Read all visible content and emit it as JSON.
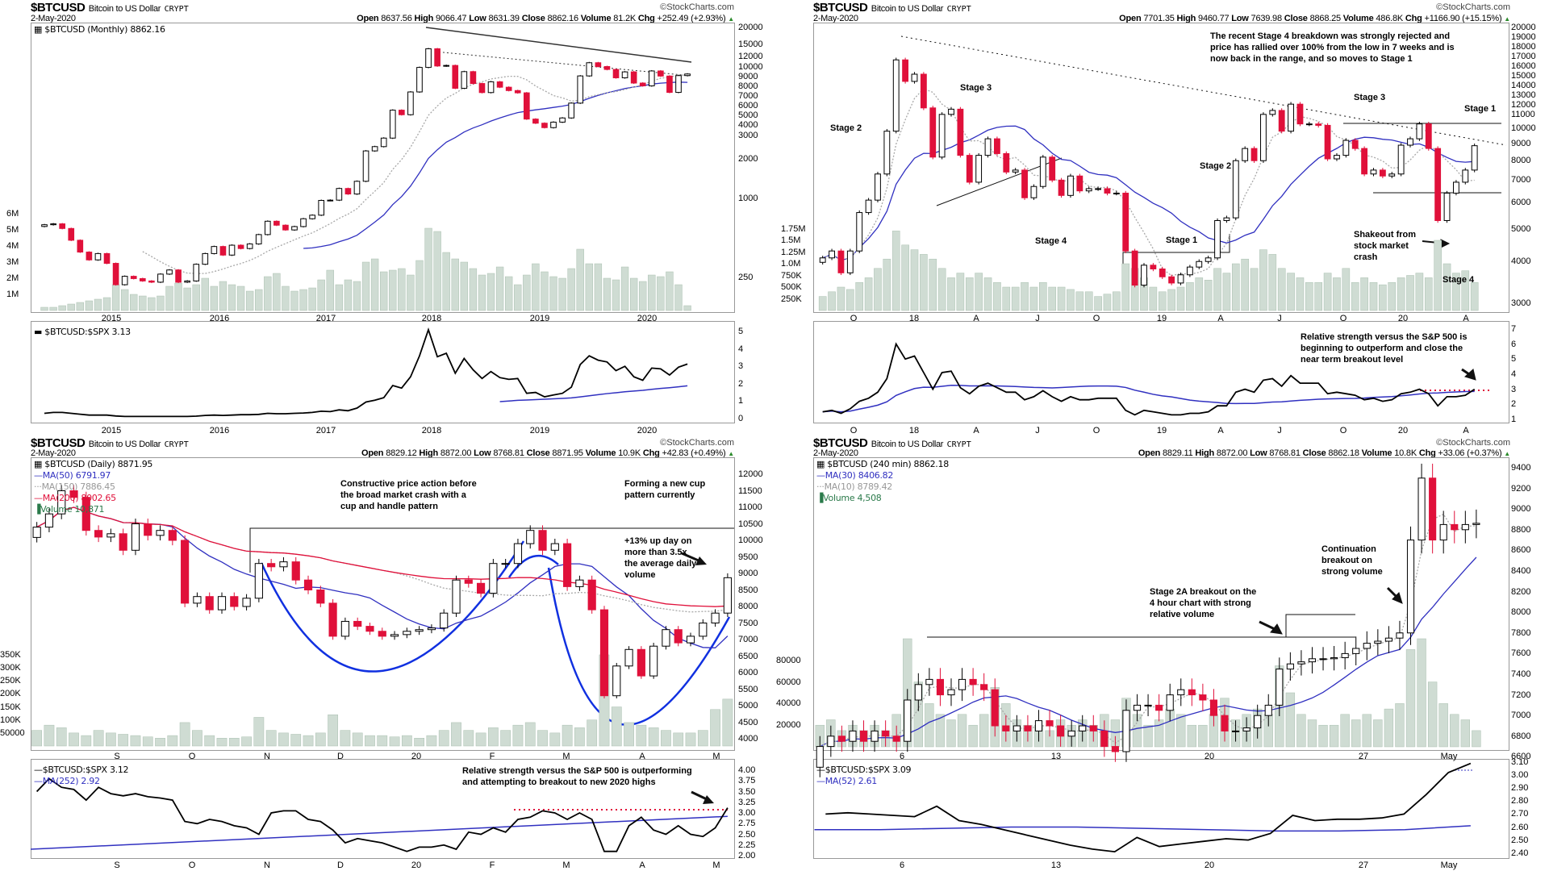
{
  "ohlc_labels": {
    "open": "Open",
    "high": "High",
    "low": "Low",
    "close": "Close",
    "volume": "Volume",
    "chg": "Chg"
  },
  "tl": {
    "header": {
      "symbol": "$BTCUSD",
      "name": "Bitcoin to US Dollar",
      "exchange": "CRYPT",
      "date": "2-May-2020",
      "watermark": "©StockCharts.com",
      "open": "8637.56",
      "high": "9066.47",
      "low": "8631.39",
      "close": "8862.16",
      "volume": "81.2K",
      "chg": "+252.49 (+2.93%)"
    },
    "legend": "$BTCUSD (Monthly) 8862.16",
    "rs_legend": "$BTCUSD:$SPX 3.13",
    "y_ticks": [
      "20000",
      "15000",
      "12000",
      "10000",
      "9000",
      "8000",
      "7000",
      "6000",
      "5000",
      "4000",
      "3000",
      "2000",
      "1000",
      "250"
    ],
    "vol_ticks": [
      "6M",
      "5M",
      "4M",
      "3M",
      "2M",
      "1M"
    ],
    "rs_ticks": [
      "5",
      "4",
      "3",
      "2",
      "1",
      "0"
    ],
    "x_ticks": [
      "2015",
      "2016",
      "2017",
      "2018",
      "2019",
      "2020"
    ]
  },
  "tr": {
    "header": {
      "symbol": "$BTCUSD",
      "name": "Bitcoin to US Dollar",
      "exchange": "CRYPT",
      "date": "2-May-2020",
      "watermark": "©StockCharts.com",
      "open": "7701.35",
      "high": "9460.77",
      "low": "7639.98",
      "close": "8868.25",
      "volume": "486.8K",
      "chg": "+1166.90 (+15.15%)"
    },
    "y_ticks": [
      "20000",
      "19000",
      "18000",
      "17000",
      "16000",
      "15000",
      "14000",
      "13000",
      "12000",
      "11000",
      "10000",
      "9000",
      "8000",
      "7000",
      "6000",
      "5000",
      "4000",
      "3000"
    ],
    "vol_ticks": [
      "1.75M",
      "1.5M",
      "1.25M",
      "1.0M",
      "750K",
      "500K",
      "250K"
    ],
    "rs_ticks": [
      "7",
      "6",
      "5",
      "4",
      "3",
      "2",
      "1"
    ],
    "x_ticks": [
      "O",
      "18",
      "A",
      "J",
      "O",
      "19",
      "A",
      "J",
      "O",
      "20",
      "A"
    ],
    "annotations": {
      "main": "The recent Stage 4 breakdown was strongly rejected and\nprice has rallied over 100% from the low in 7 weeks and is\nnow back in the range, and so moves to Stage 1",
      "stage2a": "Stage 2",
      "stage3a": "Stage 3",
      "stage4a": "Stage 4",
      "stage2b": "Stage 2",
      "stage1a": "Stage 1",
      "stage3b": "Stage 3",
      "stage1b": "Stage 1",
      "shakeout": "Shakeout from\nstock market\ncrash",
      "stage4b": "Stage 4",
      "rs": "Relative strength versus the S&P 500 is\nbeginning to outperform and close the\nnear term breakout level"
    }
  },
  "bl": {
    "header": {
      "symbol": "$BTCUSD",
      "name": "Bitcoin to US Dollar",
      "exchange": "CRYPT",
      "date": "2-May-2020",
      "watermark": "©StockCharts.com",
      "open": "8829.12",
      "high": "8872.00",
      "low": "8768.81",
      "close": "8871.95",
      "volume": "10.9K",
      "chg": "+42.83 (+0.49%)"
    },
    "legend": {
      "main": "$BTCUSD (Daily) 8871.95",
      "ma50": "MA(50) 6791.97",
      "ma150": "MA(150) 7886.45",
      "ma200": "MA(200) 8002.65",
      "volume": "Volume 10,871"
    },
    "rs_legend": {
      "main": "$BTCUSD:$SPX 3.12",
      "ma": "MA(252) 2.92"
    },
    "y_ticks": [
      "12000",
      "11500",
      "11000",
      "10500",
      "10000",
      "9500",
      "9000",
      "8500",
      "8000",
      "7500",
      "7000",
      "6500",
      "6000",
      "5500",
      "5000",
      "4500",
      "4000"
    ],
    "vol_ticks": [
      "350K",
      "300K",
      "250K",
      "200K",
      "150K",
      "100K",
      "50000"
    ],
    "rs_ticks": [
      "4.00",
      "3.75",
      "3.50",
      "3.25",
      "3.00",
      "2.75",
      "2.50",
      "2.25",
      "2.00"
    ],
    "x_ticks": [
      "S",
      "O",
      "N",
      "D",
      "20",
      "F",
      "M",
      "A",
      "M"
    ],
    "annotations": {
      "constructive": "Constructive price action before\nthe broad market crash with a\ncup and handle pattern",
      "forming": "Forming a new cup\npattern currently",
      "upday": "+13% up day on\nmore than 3.5x\nthe average daily\nvolume",
      "rs": "Relative strength versus the S&P 500 is outperforming\nand attempting to breakout to new 2020 highs"
    }
  },
  "br": {
    "header": {
      "symbol": "$BTCUSD",
      "name": "Bitcoin to US Dollar",
      "exchange": "CRYPT",
      "date": "2-May-2020",
      "watermark": "©StockCharts.com",
      "open": "8829.11",
      "high": "8872.00",
      "low": "8768.81",
      "close": "8862.18",
      "volume": "10.8K",
      "chg": "+33.06 (+0.37%)"
    },
    "legend": {
      "main": "$BTCUSD (240 min) 8862.18",
      "ma30": "MA(30) 8406.82",
      "ma10": "MA(10) 8789.42",
      "volume": "Volume 4,508"
    },
    "rs_legend": {
      "main": "$BTCUSD:$SPX 3.09",
      "ma": "MA(52) 2.61"
    },
    "y_ticks": [
      "9400",
      "9200",
      "9000",
      "8800",
      "8600",
      "8400",
      "8200",
      "8000",
      "7800",
      "7600",
      "7400",
      "7200",
      "7000",
      "6800",
      "6600"
    ],
    "vol_ticks": [
      "80000",
      "60000",
      "40000",
      "20000"
    ],
    "rs_ticks": [
      "3.10",
      "3.00",
      "2.90",
      "2.80",
      "2.70",
      "2.60",
      "2.50",
      "2.40"
    ],
    "x_ticks": [
      "6",
      "13",
      "20",
      "27",
      "May"
    ],
    "annotations": {
      "continuation": "Continuation\nbreakout on\nstrong volume",
      "stage2a": "Stage 2A breakout on the\n4 hour chart with strong\nrelative volume"
    }
  },
  "colors": {
    "up_fill": "#ffffff",
    "down": "#e0103a",
    "volume": "#cfdcd3",
    "ma_blue": "#3030c0",
    "ma_grey": "#a8a8a8",
    "ma_red": "#e0103a",
    "rs": "#000000",
    "breakout_dotted": "#e0103a"
  },
  "chart_data": [
    {
      "type": "candlestick",
      "id": "tl",
      "period": "monthly",
      "y_scale": "log",
      "ylim": [
        250,
        20000
      ],
      "close": [
        630,
        640,
        590,
        480,
        390,
        340,
        380,
        320,
        220,
        255,
        245,
        235,
        230,
        265,
        285,
        230,
        235,
        315,
        380,
        430,
        370,
        440,
        415,
        450,
        530,
        670,
        625,
        575,
        610,
        700,
        745,
        965,
        970,
        1190,
        1080,
        1350,
        2300,
        2480,
        2880,
        4700,
        4340,
        6470,
        9950,
        13800,
        10200,
        10300,
        6900,
        9240,
        7500,
        6400,
        7730,
        7030,
        6630,
        6370,
        4020,
        3740,
        3460,
        3810,
        4100,
        5320,
        8570,
        10800,
        10100,
        9600,
        8290,
        9200,
        7560,
        7200,
        9350,
        8550,
        6420,
        8620,
        8862
      ],
      "volume_m": [
        0.2,
        0.2,
        0.3,
        0.4,
        0.5,
        0.6,
        0.7,
        0.8,
        1.6,
        1.3,
        1.0,
        0.9,
        0.8,
        0.9,
        1.5,
        1.7,
        1.4,
        1.6,
        2.0,
        1.5,
        1.8,
        1.6,
        1.5,
        1.2,
        1.3,
        2.1,
        2.3,
        1.5,
        1.2,
        1.3,
        1.4,
        1.9,
        2.5,
        1.6,
        1.9,
        1.8,
        3.0,
        3.2,
        2.4,
        2.5,
        2.6,
        2.2,
        3.1,
        5.1,
        4.9,
        3.6,
        3.2,
        3.0,
        2.6,
        2.2,
        2.3,
        2.7,
        2.1,
        1.6,
        2.2,
        2.9,
        2.4,
        2.1,
        2.0,
        2.6,
        3.8,
        2.9,
        2.9,
        2.0,
        1.9,
        2.7,
        2.0,
        1.8,
        2.2,
        2.1,
        2.4,
        1.6,
        0.3
      ],
      "rs": [
        0.3,
        0.35,
        0.35,
        0.3,
        0.25,
        0.2,
        0.2,
        0.2,
        0.15,
        0.12,
        0.12,
        0.12,
        0.12,
        0.12,
        0.12,
        0.12,
        0.12,
        0.14,
        0.18,
        0.2,
        0.18,
        0.2,
        0.22,
        0.22,
        0.24,
        0.3,
        0.28,
        0.28,
        0.3,
        0.32,
        0.35,
        0.42,
        0.4,
        0.5,
        0.45,
        0.6,
        0.95,
        1.05,
        1.2,
        1.9,
        1.75,
        2.4,
        3.6,
        5.1,
        3.55,
        3.75,
        2.6,
        3.45,
        2.8,
        2.3,
        2.7,
        2.35,
        2.25,
        2.3,
        1.45,
        1.5,
        1.25,
        1.35,
        1.45,
        1.8,
        3.1,
        3.6,
        3.35,
        3.25,
        2.75,
        3.0,
        2.4,
        2.2,
        2.9,
        2.85,
        2.5,
        2.95,
        3.13
      ],
      "rs_ylim": [
        0,
        5.5
      ]
    },
    {
      "type": "candlestick",
      "id": "tr",
      "period": "weekly",
      "y_scale": "log",
      "ylim": [
        3000,
        20000
      ],
      "close": [
        4100,
        4300,
        3700,
        4300,
        5600,
        6100,
        7300,
        9800,
        16000,
        13800,
        14500,
        11500,
        8200,
        11000,
        11400,
        8300,
        6900,
        8300,
        9300,
        8400,
        7400,
        7500,
        6200,
        6700,
        8200,
        7000,
        6300,
        7200,
        6500,
        6600,
        6600,
        6400,
        6400,
        4300,
        3400,
        3900,
        3800,
        3600,
        3450,
        3650,
        3850,
        4000,
        4100,
        5300,
        5400,
        8000,
        8700,
        8000,
        11000,
        11300,
        9800,
        11800,
        10300,
        10300,
        10200,
        8100,
        8300,
        9200,
        8700,
        7300,
        7500,
        7200,
        7300,
        8900,
        9300,
        10300,
        8700,
        5300,
        6400,
        6900,
        7500,
        8868
      ],
      "volume_k": [
        300,
        400,
        500,
        450,
        600,
        700,
        900,
        1100,
        1700,
        1400,
        1300,
        1200,
        1100,
        900,
        700,
        800,
        700,
        800,
        700,
        600,
        500,
        500,
        600,
        500,
        600,
        500,
        500,
        450,
        400,
        400,
        300,
        350,
        400,
        1000,
        900,
        700,
        500,
        400,
        450,
        500,
        600,
        700,
        650,
        900,
        800,
        1000,
        1100,
        900,
        1300,
        1200,
        900,
        800,
        700,
        600,
        600,
        800,
        700,
        900,
        600,
        700,
        600,
        550,
        600,
        700,
        750,
        800,
        700,
        1500,
        1000,
        800,
        850,
        600
      ],
      "rs": [
        1.5,
        1.6,
        1.4,
        1.7,
        2.2,
        2.4,
        2.8,
        3.7,
        6.0,
        5.0,
        5.2,
        4.1,
        3.0,
        4.1,
        4.2,
        3.1,
        2.7,
        3.2,
        3.4,
        3.1,
        2.8,
        2.8,
        2.3,
        2.5,
        2.9,
        2.5,
        2.2,
        2.5,
        2.3,
        2.3,
        2.4,
        2.4,
        2.4,
        1.6,
        1.3,
        1.6,
        1.5,
        1.4,
        1.3,
        1.3,
        1.4,
        1.4,
        1.5,
        1.9,
        1.9,
        2.8,
        3.0,
        2.8,
        3.6,
        3.7,
        3.2,
        3.9,
        3.4,
        3.4,
        3.4,
        2.7,
        2.8,
        2.7,
        2.6,
        2.3,
        2.4,
        2.2,
        2.3,
        2.7,
        2.8,
        3.0,
        2.7,
        1.9,
        2.5,
        2.5,
        2.6,
        3.0
      ],
      "rs_ylim": [
        1,
        7
      ],
      "rs_breakout_level": 3.05
    },
    {
      "type": "candlestick",
      "id": "bl",
      "period": "daily",
      "y_scale": "linear",
      "ylim": [
        4000,
        12000
      ],
      "close": [
        10400,
        10800,
        11500,
        11300,
        10300,
        10100,
        10200,
        9700,
        10500,
        10150,
        10300,
        10000,
        8100,
        8300,
        7900,
        8300,
        8000,
        8250,
        9300,
        9200,
        9350,
        8800,
        8500,
        8100,
        7100,
        7550,
        7400,
        7250,
        7100,
        7150,
        7250,
        7300,
        7350,
        7800,
        8800,
        8700,
        8400,
        9300,
        9300,
        9900,
        10300,
        9700,
        9900,
        8600,
        8800,
        7900,
        5300,
        6200,
        6700,
        5900,
        6800,
        7300,
        6900,
        7100,
        7500,
        7800,
        8870
      ],
      "volume_k": [
        60,
        80,
        70,
        50,
        40,
        60,
        50,
        45,
        40,
        35,
        30,
        40,
        90,
        60,
        40,
        30,
        30,
        35,
        110,
        60,
        50,
        45,
        40,
        50,
        120,
        60,
        50,
        40,
        40,
        35,
        40,
        30,
        40,
        60,
        90,
        60,
        50,
        70,
        60,
        80,
        90,
        60,
        50,
        80,
        70,
        100,
        350,
        150,
        90,
        80,
        70,
        60,
        50,
        50,
        60,
        140,
        180
      ],
      "rs": [
        3.5,
        3.8,
        3.6,
        3.55,
        3.3,
        3.6,
        3.45,
        3.4,
        3.45,
        3.38,
        3.35,
        3.3,
        2.8,
        2.75,
        2.85,
        2.8,
        2.7,
        2.65,
        2.5,
        3.0,
        3.05,
        3.05,
        2.85,
        2.8,
        2.6,
        2.3,
        2.4,
        2.35,
        2.3,
        2.2,
        2.1,
        2.2,
        2.2,
        2.25,
        2.15,
        2.55,
        2.5,
        2.65,
        2.55,
        2.85,
        2.9,
        3.05,
        3.0,
        2.85,
        3.0,
        2.85,
        2.1,
        2.1,
        2.7,
        2.9,
        2.6,
        2.5,
        2.7,
        2.5,
        2.45,
        2.65,
        3.12
      ],
      "rs_ma252": [
        2.15,
        2.92
      ],
      "rs_ylim": [
        2,
        4
      ],
      "rs_breakout_level": 3.1,
      "breakout_level": 10500
    },
    {
      "type": "candlestick",
      "id": "br",
      "period": "240 min",
      "y_scale": "linear",
      "ylim": [
        6600,
        9400
      ],
      "close": [
        6700,
        6800,
        6750,
        6850,
        6750,
        6850,
        6800,
        6750,
        7150,
        7300,
        7350,
        7200,
        7250,
        7350,
        7300,
        7250,
        6900,
        6850,
        6900,
        6850,
        6950,
        6900,
        6800,
        6850,
        6900,
        6850,
        6700,
        6650,
        7050,
        7100,
        7100,
        7050,
        7200,
        7250,
        7200,
        7150,
        7000,
        6850,
        6850,
        6880,
        7000,
        7100,
        7450,
        7500,
        7520,
        7550,
        7550,
        7560,
        7600,
        7650,
        7700,
        7720,
        7750,
        7800,
        8700,
        9300,
        8700,
        8850,
        8800,
        8850,
        8862
      ],
      "volume": [
        20000,
        25000,
        15000,
        20000,
        15000,
        20000,
        15000,
        30000,
        100000,
        60000,
        40000,
        30000,
        25000,
        30000,
        20000,
        30000,
        55000,
        40000,
        25000,
        20000,
        20000,
        15000,
        25000,
        20000,
        25000,
        20000,
        30000,
        25000,
        45000,
        30000,
        20000,
        25000,
        35000,
        30000,
        20000,
        20000,
        30000,
        45000,
        25000,
        30000,
        35000,
        30000,
        75000,
        50000,
        30000,
        25000,
        20000,
        20000,
        30000,
        25000,
        30000,
        25000,
        35000,
        40000,
        90000,
        100000,
        60000,
        40000,
        30000,
        25000,
        15000
      ],
      "rs": [
        2.7,
        2.71,
        2.7,
        2.69,
        2.68,
        2.76,
        2.65,
        2.62,
        2.58,
        2.54,
        2.5,
        2.46,
        2.43,
        2.41,
        2.52,
        2.45,
        2.47,
        2.49,
        2.51,
        2.5,
        2.55,
        2.69,
        2.65,
        2.66,
        2.66,
        2.67,
        2.7,
        2.85,
        3.02,
        3.09
      ],
      "rs_ma52": [
        2.58,
        2.58,
        2.59,
        2.6,
        2.6,
        2.59,
        2.58,
        2.57,
        2.57,
        2.58,
        2.61
      ],
      "rs_ylim": [
        2.38,
        3.12
      ],
      "rs_level": 3.03,
      "breakout_level": 7480
    }
  ]
}
